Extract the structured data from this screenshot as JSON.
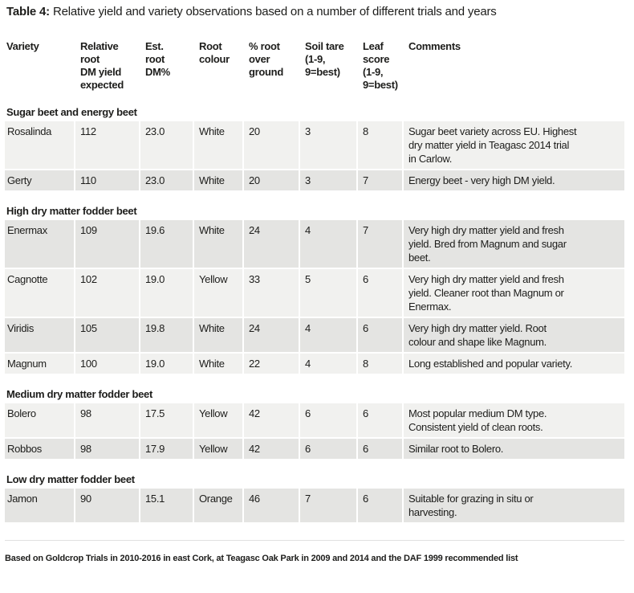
{
  "title": {
    "label": "Table 4:",
    "caption": " Relative yield and variety observations based on a number of different trials and years"
  },
  "columns": [
    {
      "id": "variety",
      "label": "Variety"
    },
    {
      "id": "relative-root-dm-yield",
      "label": "Relative root\nDM yield\nexpected"
    },
    {
      "id": "est-root-dm",
      "label": "Est.\nroot\nDM%"
    },
    {
      "id": "root-colour",
      "label": "Root\ncolour"
    },
    {
      "id": "pct-root-over-ground",
      "label": "% root\nover\nground"
    },
    {
      "id": "soil-tare",
      "label": "Soil tare\n(1-9,\n9=best)"
    },
    {
      "id": "leaf-score",
      "label": "Leaf\nscore\n(1-9,\n9=best)"
    },
    {
      "id": "comments",
      "label": "Comments"
    }
  ],
  "sections": [
    {
      "header": "Sugar beet and energy beet",
      "rows": [
        {
          "shade": "light",
          "cells": [
            "Rosalinda",
            "112",
            "23.0",
            "White",
            "20",
            "3",
            "8",
            "Sugar beet variety across EU. Highest\ndry matter yield in Teagasc 2014 trial\nin Carlow."
          ]
        },
        {
          "shade": "dark",
          "cells": [
            "Gerty",
            "110",
            "23.0",
            "White",
            "20",
            "3",
            "7",
            "Energy beet - very high DM yield."
          ]
        }
      ]
    },
    {
      "header": "High dry matter fodder beet",
      "rows": [
        {
          "shade": "dark",
          "cells": [
            "Enermax",
            "109",
            "19.6",
            "White",
            "24",
            "4",
            "7",
            "Very high dry matter yield and fresh\nyield. Bred from Magnum and sugar\nbeet."
          ]
        },
        {
          "shade": "light",
          "cells": [
            "Cagnotte",
            "102",
            "19.0",
            "Yellow",
            "33",
            "5",
            "6",
            "Very high dry matter yield and fresh\nyield. Cleaner root than Magnum or\nEnermax."
          ]
        },
        {
          "shade": "dark",
          "cells": [
            "Viridis",
            "105",
            "19.8",
            "White",
            "24",
            "4",
            "6",
            "Very high dry matter yield. Root\ncolour and shape like Magnum."
          ]
        },
        {
          "shade": "light",
          "cells": [
            "Magnum",
            "100",
            "19.0",
            "White",
            "22",
            "4",
            "8",
            "Long established and popular variety."
          ]
        }
      ]
    },
    {
      "header": "Medium dry matter fodder beet",
      "rows": [
        {
          "shade": "light",
          "cells": [
            "Bolero",
            "98",
            "17.5",
            "Yellow",
            "42",
            "6",
            "6",
            "Most popular medium DM type.\nConsistent yield of clean roots."
          ]
        },
        {
          "shade": "dark",
          "cells": [
            "Robbos",
            "98",
            "17.9",
            "Yellow",
            "42",
            "6",
            "6",
            "Similar root to Bolero."
          ]
        }
      ]
    },
    {
      "header": "Low dry matter fodder beet",
      "rows": [
        {
          "shade": "dark",
          "cells": [
            "Jamon",
            "90",
            "15.1",
            "Orange",
            "46",
            "7",
            "6",
            "Suitable for grazing in situ or\nharvesting."
          ]
        }
      ]
    }
  ],
  "footnote": "Based on Goldcrop Trials in 2010-2016 in east Cork, at Teagasc Oak Park in 2009 and 2014 and the DAF 1999 recommended list",
  "colors": {
    "row_light": "#f1f1ef",
    "row_dark": "#e4e4e2",
    "text": "#1d1d1b"
  }
}
